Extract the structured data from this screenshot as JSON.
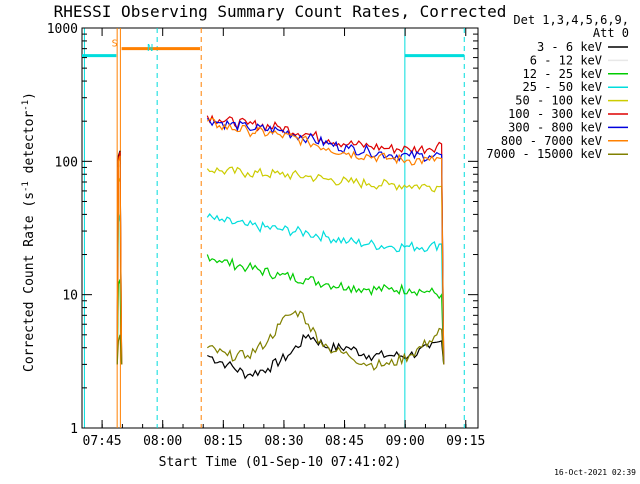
{
  "chart_data": {
    "type": "line",
    "title": "RHESSI Observing Summary Count Rates, Corrected",
    "xlabel": "Start Time (01-Sep-10 07:41:02)",
    "ylabel": "Corrected Count Rate (s^-1 detector^-1)",
    "ylabel_parts": {
      "main": "Corrected Count Rate (s",
      "sup1": "-1",
      "mid": " detector",
      "sup2": "-1",
      "end": ")"
    },
    "x_unit": "minutes after 07:41:02",
    "x_range": [
      -1,
      97
    ],
    "y_range": [
      1,
      1000
    ],
    "y_scale": "log",
    "x_ticks": [
      {
        "label": "07:45",
        "x": 3.97
      },
      {
        "label": "08:00",
        "x": 18.97
      },
      {
        "label": "08:15",
        "x": 33.97
      },
      {
        "label": "08:30",
        "x": 48.97
      },
      {
        "label": "08:45",
        "x": 63.97
      },
      {
        "label": "09:00",
        "x": 78.97
      },
      {
        "label": "09:15",
        "x": 93.97
      }
    ],
    "y_ticks": [
      {
        "label": "1",
        "y": 1
      },
      {
        "label": "10",
        "y": 10
      },
      {
        "label": "100",
        "y": 100
      },
      {
        "label": "1000",
        "y": 1000
      }
    ],
    "legend_header": [
      "Det 1,3,4,5,6,9,",
      "Att 0"
    ],
    "legend_position": "right",
    "series": [
      {
        "name": "3 - 6 keV",
        "color": "#000000",
        "segments": [
          [
            [
              7.7,
              3
            ],
            [
              8.0,
              110
            ],
            [
              8.4,
              120
            ],
            [
              8.8,
              3
            ]
          ],
          [
            [
              30,
              3.5
            ],
            [
              35,
              3
            ],
            [
              40,
              2.5
            ],
            [
              45,
              2.8
            ],
            [
              50,
              3.5
            ],
            [
              55,
              5
            ],
            [
              60,
              4
            ],
            [
              65,
              4
            ],
            [
              70,
              3.5
            ],
            [
              75,
              3.5
            ],
            [
              80,
              3.5
            ],
            [
              85,
              4
            ],
            [
              88,
              4.5
            ],
            [
              88.5,
              3
            ]
          ]
        ]
      },
      {
        "name": "6 - 12 keV",
        "color": "#e8e8e8",
        "segments": [
          [
            [
              7.7,
              3
            ],
            [
              8.0,
              90
            ],
            [
              8.4,
              95
            ],
            [
              8.8,
              3
            ]
          ]
        ]
      },
      {
        "name": "12 - 25 keV",
        "color": "#00cc00",
        "segments": [
          [
            [
              7.7,
              3
            ],
            [
              8.0,
              12
            ],
            [
              8.4,
              13
            ],
            [
              8.8,
              3
            ]
          ],
          [
            [
              30,
              20
            ],
            [
              33,
              18
            ],
            [
              40,
              16
            ],
            [
              48,
              14
            ],
            [
              55,
              13
            ],
            [
              60,
              12
            ],
            [
              65,
              11.5
            ],
            [
              70,
              11
            ],
            [
              75,
              11
            ],
            [
              80,
              11
            ],
            [
              85,
              10.5
            ],
            [
              88,
              10
            ],
            [
              88.5,
              3
            ]
          ]
        ]
      },
      {
        "name": "25 - 50 keV",
        "color": "#00dddd",
        "segments": [
          [
            [
              7.7,
              3
            ],
            [
              8.0,
              35
            ],
            [
              8.4,
              40
            ],
            [
              8.8,
              3
            ]
          ],
          [
            [
              30,
              38
            ],
            [
              33,
              36
            ],
            [
              40,
              33
            ],
            [
              48,
              31
            ],
            [
              55,
              29
            ],
            [
              60,
              27
            ],
            [
              65,
              25
            ],
            [
              70,
              24
            ],
            [
              75,
              23
            ],
            [
              80,
              23
            ],
            [
              85,
              23
            ],
            [
              88,
              24
            ],
            [
              88.5,
              3
            ]
          ]
        ]
      },
      {
        "name": "50 - 100 keV",
        "color": "#cccc00",
        "segments": [
          [
            [
              7.7,
              3
            ],
            [
              8.0,
              70
            ],
            [
              8.4,
              75
            ],
            [
              8.8,
              3
            ]
          ],
          [
            [
              30,
              88
            ],
            [
              33,
              85
            ],
            [
              40,
              82
            ],
            [
              48,
              80
            ],
            [
              55,
              77
            ],
            [
              60,
              73
            ],
            [
              65,
              70
            ],
            [
              70,
              68
            ],
            [
              75,
              67
            ],
            [
              80,
              66
            ],
            [
              85,
              65
            ],
            [
              88,
              65
            ],
            [
              88.5,
              3
            ]
          ]
        ]
      },
      {
        "name": "100 - 300 keV",
        "color": "#dd0000",
        "segments": [
          [
            [
              7.7,
              3
            ],
            [
              8.0,
              105
            ],
            [
              8.4,
              118
            ],
            [
              8.8,
              3
            ]
          ],
          [
            [
              30,
              220
            ],
            [
              33,
              205
            ],
            [
              40,
              190
            ],
            [
              48,
              180
            ],
            [
              55,
              160
            ],
            [
              60,
              145
            ],
            [
              65,
              135
            ],
            [
              70,
              130
            ],
            [
              75,
              125
            ],
            [
              80,
              123
            ],
            [
              85,
              125
            ],
            [
              88,
              135
            ],
            [
              88.5,
              3
            ]
          ]
        ]
      },
      {
        "name": "300 - 800 keV",
        "color": "#0000dd",
        "segments": [
          [
            [
              30,
              210
            ],
            [
              33,
              195
            ],
            [
              40,
              180
            ],
            [
              48,
              170
            ],
            [
              55,
              150
            ],
            [
              60,
              135
            ],
            [
              65,
              125
            ],
            [
              70,
              120
            ],
            [
              75,
              112
            ],
            [
              80,
              110
            ],
            [
              85,
              110
            ],
            [
              88,
              112
            ],
            [
              88.5,
              3
            ]
          ]
        ]
      },
      {
        "name": "800 - 7000 keV",
        "color": "#ff8000",
        "segments": [
          [
            [
              7.7,
              3
            ],
            [
              8.0,
              100
            ],
            [
              8.4,
              110
            ],
            [
              8.8,
              3
            ]
          ],
          [
            [
              30,
              200
            ],
            [
              33,
              185
            ],
            [
              40,
              170
            ],
            [
              48,
              158
            ],
            [
              55,
              140
            ],
            [
              60,
              125
            ],
            [
              65,
              115
            ],
            [
              70,
              110
            ],
            [
              75,
              105
            ],
            [
              80,
              102
            ],
            [
              85,
              102
            ],
            [
              88,
              105
            ],
            [
              88.5,
              3
            ]
          ]
        ]
      },
      {
        "name": "7000 - 15000 keV",
        "color": "#808000",
        "segments": [
          [
            [
              7.7,
              3
            ],
            [
              8.0,
              4.5
            ],
            [
              8.4,
              5
            ],
            [
              8.8,
              3
            ]
          ],
          [
            [
              30,
              4
            ],
            [
              35,
              3.5
            ],
            [
              40,
              3.5
            ],
            [
              45,
              4.5
            ],
            [
              48,
              6
            ],
            [
              50,
              7
            ],
            [
              53,
              7.5
            ],
            [
              55,
              6
            ],
            [
              58,
              4.5
            ],
            [
              60,
              4
            ],
            [
              65,
              3.5
            ],
            [
              70,
              3
            ],
            [
              75,
              3
            ],
            [
              80,
              3.5
            ],
            [
              85,
              4.5
            ],
            [
              88,
              5.5
            ],
            [
              88.5,
              3
            ]
          ]
        ]
      }
    ],
    "attenuator_state_lines": [
      {
        "x": 7.7,
        "color": "#ff8000",
        "style": "solid"
      },
      {
        "x": 8.5,
        "color": "#ff8000",
        "style": "solid"
      },
      {
        "x": 28.5,
        "color": "#ff8000",
        "style": "dashed"
      }
    ],
    "night_lines": [
      {
        "x": 17.6,
        "color": "#00dddd",
        "style": "dashed"
      },
      {
        "x": 78.9,
        "color": "#00dddd",
        "style": "solid"
      },
      {
        "x": 93.6,
        "color": "#00dddd",
        "style": "dashed"
      },
      {
        "x": -0.4,
        "color": "#00dddd",
        "style": "solid"
      }
    ],
    "bars": [
      {
        "label": "S",
        "color": "#ff8000",
        "x_start": 8.8,
        "x_end": 28.2,
        "y": 700
      },
      {
        "label": "N",
        "color": "#00dddd",
        "x_start": 17.6,
        "x_end": 17.6,
        "y": 650
      },
      {
        "label": "",
        "color": "#00dddd",
        "x_start": -1,
        "x_end": 7.5,
        "y": 620
      },
      {
        "label": "",
        "color": "#00dddd",
        "x_start": 78.9,
        "x_end": 93.6,
        "y": 620
      }
    ],
    "axis_color": "#000000",
    "background": "#ffffff"
  },
  "footer_timestamp": "16-Oct-2021 02:39"
}
